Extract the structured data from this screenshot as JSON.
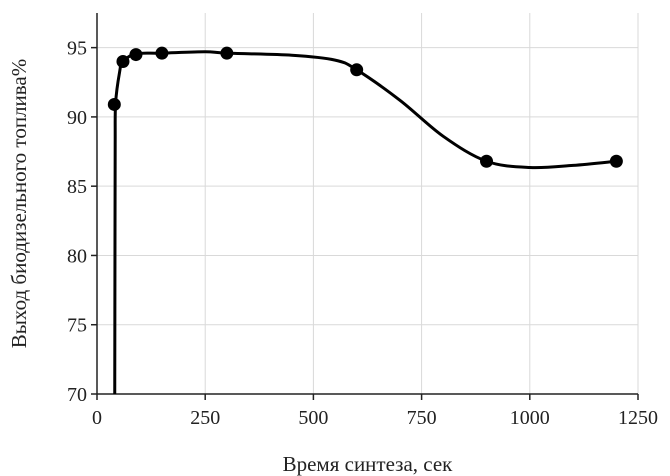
{
  "chart_data": {
    "type": "scatter",
    "title": "",
    "xlabel": "Время синтеза, сек",
    "ylabel": "Выход биодизельного топлива%",
    "xlim": [
      0,
      1250
    ],
    "ylim": [
      70,
      97.5
    ],
    "x_ticks": [
      0,
      250,
      500,
      750,
      1000,
      1250
    ],
    "y_ticks": [
      70,
      75,
      80,
      85,
      90,
      95
    ],
    "x_tick_labels": [
      "0",
      "250",
      "500",
      "750",
      "1000",
      "1250"
    ],
    "y_tick_labels": [
      "70",
      "75",
      "80",
      "85",
      "90",
      "95"
    ],
    "grid": true,
    "legend": "none",
    "series": [
      {
        "points": [
          {
            "x": 40,
            "y": 90.9
          },
          {
            "x": 60,
            "y": 94.0
          },
          {
            "x": 90,
            "y": 94.5
          },
          {
            "x": 150,
            "y": 94.6
          },
          {
            "x": 300,
            "y": 94.6
          },
          {
            "x": 600,
            "y": 93.4
          },
          {
            "x": 900,
            "y": 86.8
          },
          {
            "x": 1200,
            "y": 86.8
          }
        ],
        "trend_curve": [
          [
            41,
            70
          ],
          [
            41.5,
            80
          ],
          [
            42,
            88
          ],
          [
            43,
            91
          ],
          [
            52,
            93.2
          ],
          [
            60,
            94.0
          ],
          [
            90,
            94.55
          ],
          [
            150,
            94.6
          ],
          [
            250,
            94.7
          ],
          [
            300,
            94.6
          ],
          [
            450,
            94.45
          ],
          [
            550,
            94.1
          ],
          [
            600,
            93.4
          ],
          [
            700,
            91.2
          ],
          [
            800,
            88.6
          ],
          [
            900,
            86.8
          ],
          [
            1000,
            86.35
          ],
          [
            1100,
            86.5
          ],
          [
            1200,
            86.8
          ]
        ]
      }
    ]
  }
}
